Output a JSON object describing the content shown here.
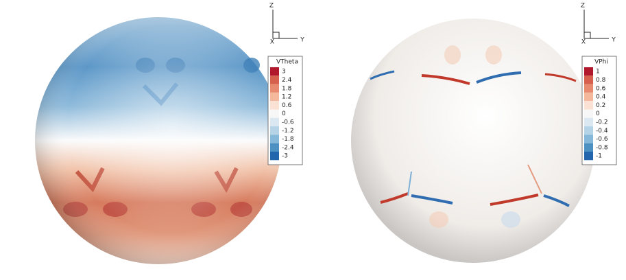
{
  "panels": [
    {
      "axes": {
        "z": "Z",
        "y": "Y",
        "x": "X"
      },
      "legend": {
        "title": "VTheta",
        "levels": [
          3,
          2.4,
          1.8,
          1.2,
          0.6,
          0,
          -0.6,
          -1.2,
          -1.8,
          -2.4,
          -3
        ]
      }
    },
    {
      "axes": {
        "z": "Z",
        "y": "Y",
        "x": "X"
      },
      "legend": {
        "title": "VPhi",
        "levels": [
          1,
          0.8,
          0.6,
          0.4,
          0.2,
          0,
          -0.2,
          -0.4,
          -0.6,
          -0.8,
          -1
        ]
      }
    }
  ]
}
